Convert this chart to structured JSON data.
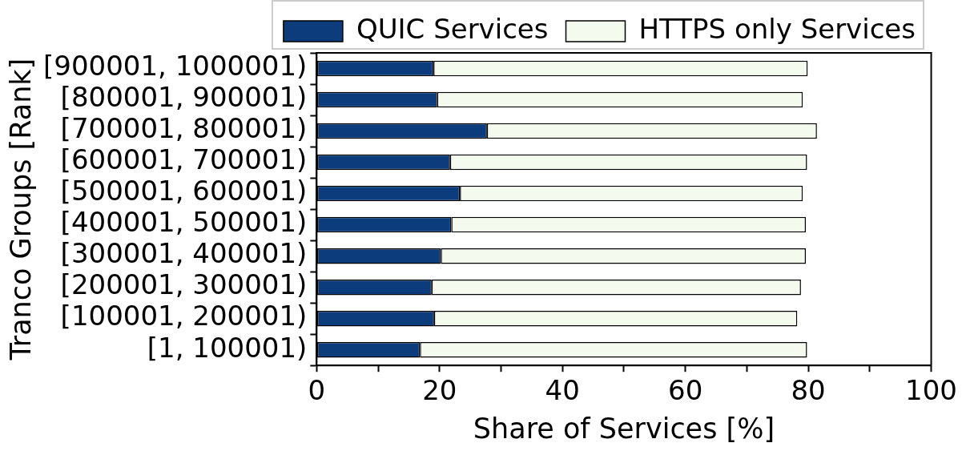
{
  "chart_data": {
    "type": "bar",
    "orientation": "horizontal",
    "stacked": true,
    "xlabel": "Share of Services [%]",
    "ylabel": "Tranco Groups [Rank]",
    "categories": [
      "[900001, 1000001)",
      "[800001, 900001)",
      "[700001, 800001)",
      "[600001, 700001)",
      "[500001, 600001)",
      "[400001, 500001)",
      "[300001, 400001)",
      "[200001, 300001)",
      "[100001, 200001)",
      "[1, 100001)"
    ],
    "series": [
      {
        "name": "QUIC Services",
        "color": "#0c3c7c",
        "values": [
          19.0,
          19.6,
          27.7,
          21.7,
          23.3,
          21.9,
          20.2,
          18.7,
          19.1,
          16.8
        ]
      },
      {
        "name": "HTTPS only Services",
        "color": "#f4faee",
        "values": [
          60.9,
          59.5,
          53.7,
          58.1,
          55.8,
          57.7,
          59.4,
          60.1,
          59.1,
          63.0
        ]
      }
    ],
    "xlim": [
      0,
      100
    ],
    "xticks": [
      0,
      {
        "value": 10,
        "label": null
      },
      20,
      {
        "value": 30,
        "label": null
      },
      40,
      {
        "value": 50,
        "label": null
      },
      60,
      {
        "value": 70,
        "label": null
      },
      80,
      {
        "value": 90,
        "label": null
      },
      100
    ],
    "grid": false,
    "legend": "top"
  }
}
